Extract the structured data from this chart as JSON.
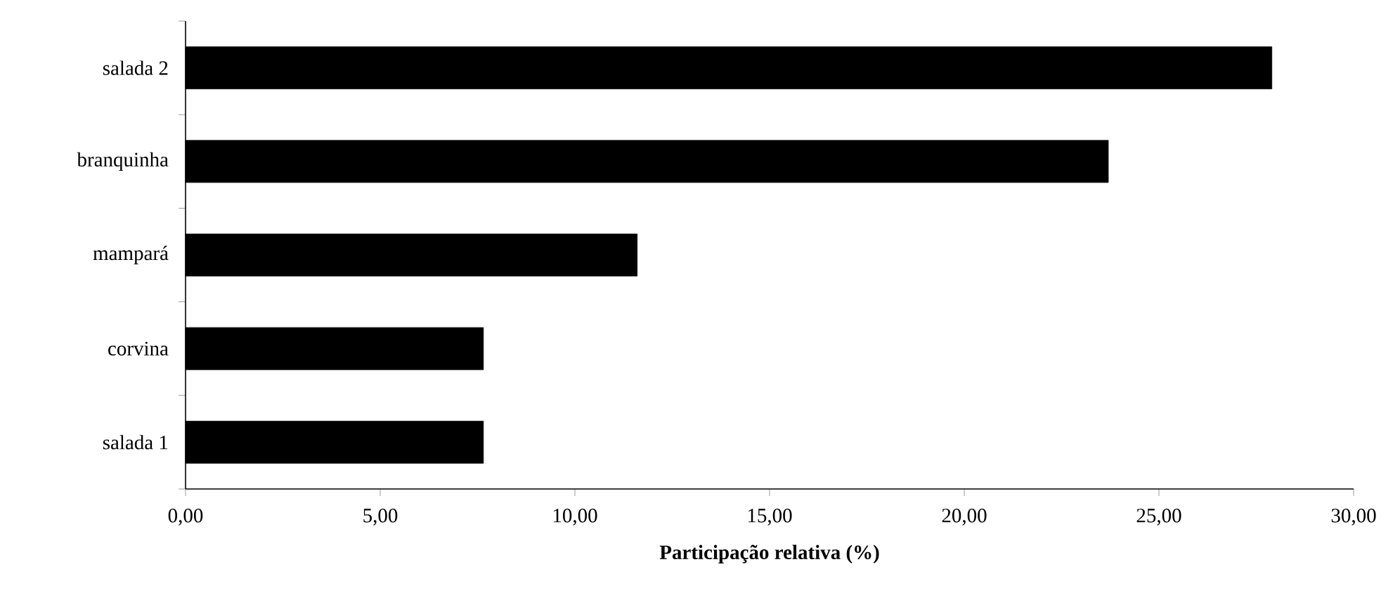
{
  "chart_data": {
    "type": "bar",
    "orientation": "horizontal",
    "xlabel": "Participação relativa (%)",
    "categories": [
      "salada 2",
      "branquinha",
      "mampará",
      "corvina",
      "salada 1"
    ],
    "values": [
      27.9,
      23.7,
      11.6,
      7.65,
      7.65
    ],
    "color": "#000000",
    "xlim": [
      0,
      30
    ],
    "xticks": [
      {
        "value": 0,
        "label": "0,00"
      },
      {
        "value": 5,
        "label": "5,00"
      },
      {
        "value": 10,
        "label": "10,00"
      },
      {
        "value": 15,
        "label": "15,00"
      },
      {
        "value": 20,
        "label": "20,00"
      },
      {
        "value": 25,
        "label": "25,00"
      },
      {
        "value": 30,
        "label": "30,00"
      }
    ],
    "grid": false
  }
}
